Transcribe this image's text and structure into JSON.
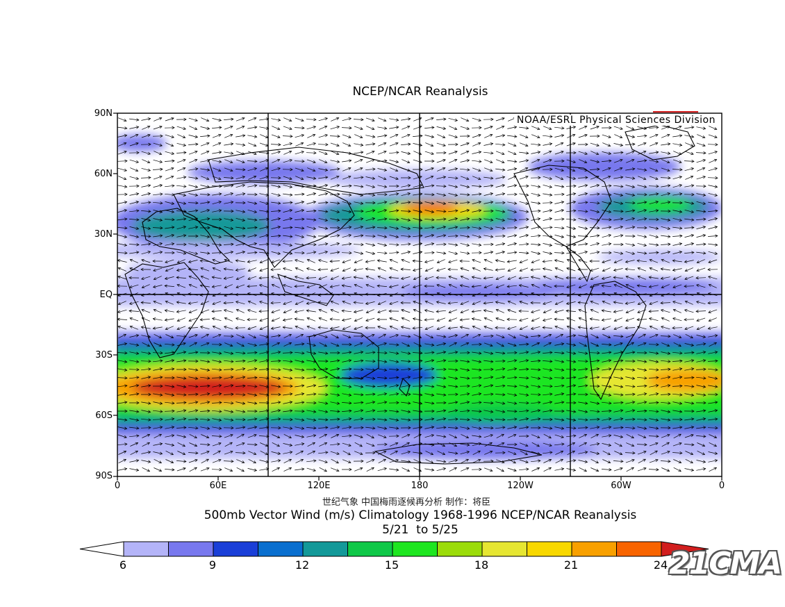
{
  "header": {
    "title": "NCEP/NCAR Reanalysis",
    "credit_box": "NOAA/ESRL Physical Sciences Division"
  },
  "axes": {
    "lat_labels": [
      "90N",
      "60N",
      "30N",
      "EQ",
      "30S",
      "60S",
      "90S"
    ],
    "lon_labels": [
      "0",
      "60E",
      "120E",
      "180",
      "120W",
      "60W",
      "0"
    ]
  },
  "footer": {
    "credit_cn": "世纪气象  中国梅雨逐候再分析  制作：将臣",
    "subtitle": "500mb Vector Wind (m/s) Climatology 1968-1996 NCEP/NCAR Reanalysis",
    "dates": "5/21  to 5/25"
  },
  "colorbar": {
    "labels": [
      "6",
      "9",
      "12",
      "15",
      "18",
      "21",
      "24"
    ],
    "colors": [
      "#ffffff",
      "#b4b4f8",
      "#7878ee",
      "#1a3fd8",
      "#0a6fcf",
      "#139999",
      "#0fc848",
      "#1ee620",
      "#9bdc0a",
      "#e6e632",
      "#f8d800",
      "#f8a000",
      "#f86400",
      "#d21e1e"
    ]
  },
  "watermark": "21CMA",
  "map": {
    "jets": [
      {
        "name": "southern-jet",
        "level": 0.7
      },
      {
        "name": "south-indian-core",
        "level": 1.0
      },
      {
        "name": "south-atlantic-core",
        "level": 0.85
      },
      {
        "name": "north-pacific-jet",
        "level": 0.75
      },
      {
        "name": "north-atlantic-jet",
        "level": 0.5
      }
    ]
  }
}
